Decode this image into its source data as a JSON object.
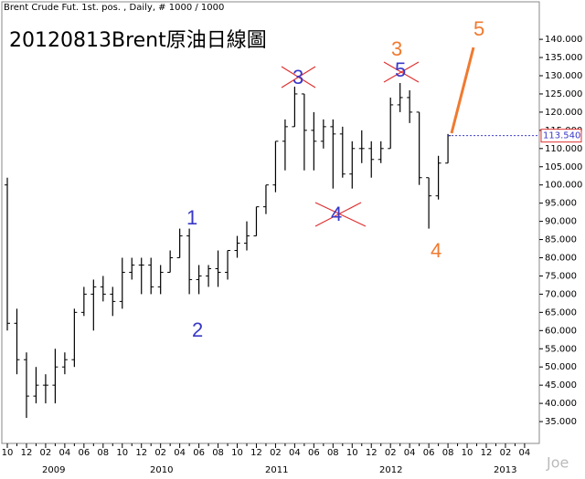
{
  "header": "Brent Crude Fut. 1st. pos. , Daily, # 1000 / 1000",
  "watermark": "Joe",
  "chart_data": {
    "type": "ohlc",
    "title": "20120813Brent原油日線圖",
    "color": "#000000",
    "categories": [
      "10",
      null,
      "12",
      null,
      "02",
      null,
      "04",
      null,
      "06",
      null,
      "08",
      null,
      "10",
      null,
      "12",
      null,
      "02",
      null,
      "04",
      null,
      "06",
      null,
      "08",
      null,
      "10",
      null,
      "12",
      null,
      "02",
      null,
      "04",
      null,
      "06",
      null,
      "08",
      null,
      "10",
      null,
      "12",
      null,
      "02",
      null,
      "04",
      null,
      "06",
      null,
      "08",
      null,
      "10",
      null,
      "12",
      null,
      "02",
      null,
      "04"
    ],
    "years": [
      "2009",
      "2010",
      "2011",
      "2012",
      "2013"
    ],
    "open": [
      100,
      62,
      52,
      42,
      45,
      45,
      50,
      52,
      65,
      70,
      72,
      70,
      68,
      76,
      78,
      78,
      72,
      76,
      80,
      86,
      74,
      75,
      77,
      76,
      82,
      84,
      86,
      94,
      100,
      112,
      116,
      125,
      115,
      112,
      116,
      114,
      103,
      110,
      110,
      107,
      110,
      122,
      124,
      120,
      102,
      97,
      106,
      null,
      null,
      null,
      null,
      null,
      null,
      null,
      null
    ],
    "high": [
      102,
      66,
      54,
      50,
      48,
      55,
      54,
      66,
      72,
      74,
      75,
      72,
      80,
      80,
      80,
      80,
      78,
      82,
      88,
      88,
      78,
      78,
      82,
      82,
      86,
      90,
      94,
      100,
      112,
      118,
      127,
      125,
      120,
      118,
      118,
      116,
      112,
      115,
      112,
      112,
      124,
      128,
      126,
      120,
      102,
      108,
      114,
      null,
      null,
      null,
      null,
      null,
      null,
      null,
      null
    ],
    "low": [
      60,
      48,
      36,
      40,
      40,
      40,
      48,
      50,
      64,
      60,
      68,
      64,
      66,
      74,
      70,
      70,
      70,
      76,
      80,
      70,
      70,
      72,
      72,
      74,
      80,
      82,
      86,
      92,
      98,
      104,
      116,
      104,
      104,
      110,
      99,
      102,
      99,
      106,
      102,
      106,
      110,
      120,
      117,
      100,
      88,
      96,
      106,
      null,
      null,
      null,
      null,
      null,
      null,
      null,
      null
    ],
    "close": [
      62,
      52,
      42,
      45,
      45,
      50,
      52,
      65,
      70,
      72,
      70,
      68,
      76,
      78,
      78,
      72,
      76,
      80,
      86,
      74,
      75,
      77,
      76,
      82,
      84,
      86,
      94,
      100,
      112,
      116,
      125,
      115,
      112,
      116,
      114,
      103,
      110,
      110,
      107,
      110,
      122,
      124,
      120,
      102,
      97,
      106,
      113.54,
      null,
      null,
      null,
      null,
      null,
      null,
      null,
      null
    ],
    "last": {
      "value": 113.54,
      "label": "113.540"
    },
    "ylim": [
      29,
      150.3
    ],
    "yticks": [
      {
        "value": 35,
        "label": "35.000"
      },
      {
        "value": 40,
        "label": "40.000"
      },
      {
        "value": 45,
        "label": "45.000"
      },
      {
        "value": 50,
        "label": "50.000"
      },
      {
        "value": 55,
        "label": "55.000"
      },
      {
        "value": 60,
        "label": "60.000"
      },
      {
        "value": 65,
        "label": "65.000"
      },
      {
        "value": 70,
        "label": "70.000"
      },
      {
        "value": 75,
        "label": "75.000"
      },
      {
        "value": 80,
        "label": "80.000"
      },
      {
        "value": 85,
        "label": "85.000"
      },
      {
        "value": 90,
        "label": "90.000"
      },
      {
        "value": 95,
        "label": "95.000"
      },
      {
        "value": 100,
        "label": "100.000"
      },
      {
        "value": 105,
        "label": "105.000"
      },
      {
        "value": 110,
        "label": "110.000"
      },
      {
        "value": 115,
        "label": "115.000"
      },
      {
        "value": 120,
        "label": "120.000"
      },
      {
        "value": 125,
        "label": "125.000"
      },
      {
        "value": 130,
        "label": "130.000"
      },
      {
        "value": 135,
        "label": "135.000"
      },
      {
        "value": 140,
        "label": "140.000"
      }
    ],
    "annotations": [
      "1",
      "2",
      "3",
      "4",
      "5",
      "3",
      "4",
      "5"
    ]
  }
}
